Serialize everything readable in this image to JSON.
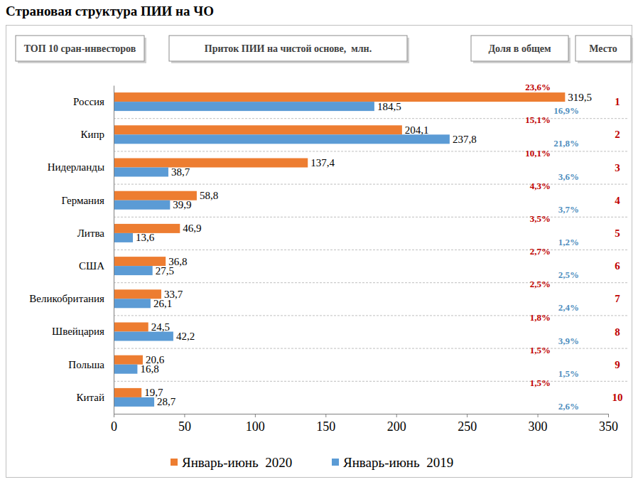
{
  "chart_data": {
    "type": "bar",
    "orientation": "horizontal",
    "title": "Страновая структура ПИИ на ЧО",
    "headers": [
      "ТОП 10 сран-инвесторов",
      "Приток ПИИ на чистой основе,  млн.",
      "Доля в общем",
      "Место"
    ],
    "categories": [
      "Россия",
      "Кипр",
      "Нидерланды",
      "Германия",
      "Литва",
      "США",
      "Великобритания",
      "Швейцария",
      "Польша",
      "Китай"
    ],
    "series": [
      {
        "name": "Январь-июнь  2020",
        "color": "#ed7d31",
        "values": [
          319.5,
          204.1,
          137.4,
          58.8,
          46.9,
          36.8,
          33.7,
          24.5,
          20.6,
          19.7
        ],
        "value_labels": [
          "319,5",
          "204,1",
          "137,4",
          "58,8",
          "46,9",
          "36,8",
          "33,7",
          "24,5",
          "20,6",
          "19,7"
        ],
        "share_labels": [
          "23,6%",
          "15,1%",
          "10,1%",
          "4,3%",
          "3,5%",
          "2,7%",
          "2,5%",
          "1,8%",
          "1,5%",
          "1,5%"
        ]
      },
      {
        "name": "Январь-июнь  2019",
        "color": "#5b9bd5",
        "values": [
          184.5,
          237.8,
          38.7,
          39.9,
          13.6,
          27.5,
          26.1,
          42.2,
          16.8,
          28.7
        ],
        "value_labels": [
          "184,5",
          "237,8",
          "38,7",
          "39,9",
          "13,6",
          "27,5",
          "26,1",
          "42,2",
          "16,8",
          "28,7"
        ],
        "share_labels": [
          "16,9%",
          "21,8%",
          "3,6%",
          "3,7%",
          "1,2%",
          "2,5%",
          "2,4%",
          "3,9%",
          "1,5%",
          "2,6%"
        ]
      }
    ],
    "places": [
      1,
      2,
      3,
      4,
      5,
      6,
      7,
      8,
      9,
      10
    ],
    "xlim": [
      0,
      350
    ],
    "xticks": [
      0,
      50,
      100,
      150,
      200,
      250,
      300,
      350
    ],
    "grid": false,
    "legend": "bottom",
    "data_labels": true
  }
}
